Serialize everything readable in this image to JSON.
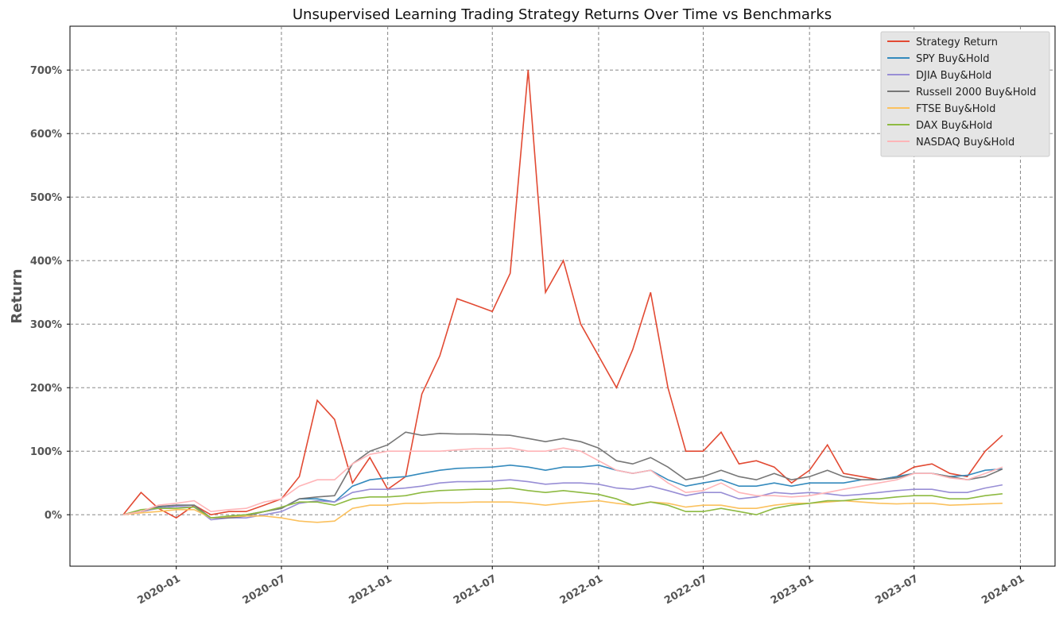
{
  "chart_data": {
    "type": "line",
    "title": "Unsupervised Learning Trading Strategy Returns Over Time vs Benchmarks",
    "y_label": "Return",
    "x": [
      "2019-10",
      "2019-11",
      "2019-12",
      "2020-01",
      "2020-02",
      "2020-03",
      "2020-04",
      "2020-05",
      "2020-06",
      "2020-07",
      "2020-08",
      "2020-09",
      "2020-10",
      "2020-11",
      "2020-12",
      "2021-01",
      "2021-02",
      "2021-03",
      "2021-04",
      "2021-05",
      "2021-06",
      "2021-07",
      "2021-08",
      "2021-09",
      "2021-10",
      "2021-11",
      "2021-12",
      "2022-01",
      "2022-02",
      "2022-03",
      "2022-04",
      "2022-05",
      "2022-06",
      "2022-07",
      "2022-08",
      "2022-09",
      "2022-10",
      "2022-11",
      "2022-12",
      "2023-01",
      "2023-02",
      "2023-03",
      "2023-04",
      "2023-05",
      "2023-06",
      "2023-07",
      "2023-08",
      "2023-09",
      "2023-10",
      "2023-11",
      "2023-12"
    ],
    "xlim": [
      "2019-07",
      "2024-03"
    ],
    "xticks": [
      "2020-01",
      "2020-07",
      "2021-01",
      "2021-07",
      "2022-01",
      "2022-07",
      "2023-01",
      "2023-07",
      "2024-01"
    ],
    "ylim": [
      -81,
      769
    ],
    "yticks": [
      {
        "value": 0,
        "label": "0%"
      },
      {
        "value": 100,
        "label": "100%"
      },
      {
        "value": 200,
        "label": "200%"
      },
      {
        "value": 300,
        "label": "300%"
      },
      {
        "value": 400,
        "label": "400%"
      },
      {
        "value": 500,
        "label": "500%"
      },
      {
        "value": 600,
        "label": "600%"
      },
      {
        "value": 700,
        "label": "700%"
      }
    ],
    "grid": true,
    "legend": "upper right",
    "series": [
      {
        "name": "Strategy Return",
        "color": "#E24A33",
        "values": [
          0,
          35,
          10,
          -5,
          15,
          0,
          5,
          5,
          15,
          25,
          60,
          180,
          150,
          50,
          90,
          40,
          60,
          190,
          250,
          340,
          330,
          320,
          380,
          700,
          350,
          400,
          300,
          250,
          200,
          260,
          350,
          200,
          100,
          100,
          130,
          80,
          85,
          75,
          50,
          70,
          110,
          65,
          60,
          55,
          60,
          75,
          80,
          65,
          60,
          100,
          125
        ]
      },
      {
        "name": "SPY Buy&Hold",
        "color": "#348ABD",
        "values": [
          0,
          5,
          12,
          15,
          15,
          -5,
          -3,
          0,
          5,
          10,
          25,
          25,
          20,
          45,
          55,
          58,
          60,
          65,
          70,
          73,
          74,
          75,
          78,
          75,
          70,
          75,
          75,
          78,
          70,
          65,
          70,
          55,
          45,
          50,
          55,
          45,
          45,
          50,
          45,
          50,
          50,
          50,
          55,
          55,
          60,
          65,
          65,
          60,
          62,
          70,
          72
        ]
      },
      {
        "name": "DJIA Buy&Hold",
        "color": "#988ED5",
        "values": [
          0,
          5,
          10,
          13,
          12,
          -8,
          -5,
          -5,
          0,
          5,
          18,
          22,
          20,
          35,
          40,
          40,
          42,
          45,
          50,
          52,
          52,
          53,
          55,
          52,
          48,
          50,
          50,
          48,
          42,
          40,
          45,
          38,
          30,
          35,
          35,
          25,
          28,
          35,
          33,
          35,
          33,
          30,
          32,
          35,
          38,
          40,
          40,
          35,
          35,
          42,
          47
        ]
      },
      {
        "name": "Russell 2000 Buy&Hold",
        "color": "#777777",
        "values": [
          0,
          5,
          13,
          15,
          15,
          -5,
          -5,
          -2,
          5,
          10,
          25,
          28,
          30,
          80,
          100,
          110,
          130,
          125,
          128,
          127,
          127,
          126,
          125,
          120,
          115,
          120,
          115,
          105,
          85,
          80,
          90,
          75,
          55,
          60,
          70,
          60,
          55,
          65,
          55,
          60,
          70,
          60,
          55,
          55,
          58,
          65,
          65,
          60,
          55,
          60,
          72
        ]
      },
      {
        "name": "FTSE Buy&Hold",
        "color": "#FBC15E",
        "values": [
          0,
          3,
          5,
          8,
          8,
          -5,
          -3,
          -2,
          -2,
          -5,
          -10,
          -12,
          -10,
          10,
          15,
          15,
          18,
          18,
          19,
          19,
          20,
          20,
          20,
          18,
          15,
          18,
          20,
          22,
          18,
          15,
          20,
          18,
          12,
          15,
          15,
          10,
          10,
          15,
          18,
          18,
          20,
          22,
          20,
          18,
          17,
          18,
          18,
          15,
          16,
          17,
          18
        ]
      },
      {
        "name": "DAX Buy&Hold",
        "color": "#8EBA42",
        "values": [
          0,
          8,
          10,
          10,
          12,
          -5,
          -2,
          0,
          5,
          12,
          20,
          20,
          15,
          25,
          28,
          28,
          30,
          35,
          38,
          39,
          40,
          40,
          42,
          38,
          35,
          38,
          35,
          32,
          25,
          15,
          20,
          15,
          5,
          5,
          10,
          5,
          0,
          10,
          15,
          18,
          22,
          22,
          25,
          25,
          28,
          30,
          30,
          25,
          25,
          30,
          33
        ]
      },
      {
        "name": "NASDAQ Buy&Hold",
        "color": "#FFB5B8",
        "values": [
          0,
          5,
          15,
          18,
          22,
          5,
          8,
          10,
          20,
          25,
          45,
          55,
          55,
          80,
          95,
          100,
          100,
          100,
          100,
          102,
          104,
          104,
          105,
          100,
          100,
          105,
          100,
          85,
          70,
          65,
          70,
          50,
          35,
          38,
          50,
          35,
          30,
          30,
          28,
          30,
          35,
          40,
          45,
          50,
          55,
          65,
          65,
          58,
          55,
          65,
          75
        ]
      }
    ]
  }
}
